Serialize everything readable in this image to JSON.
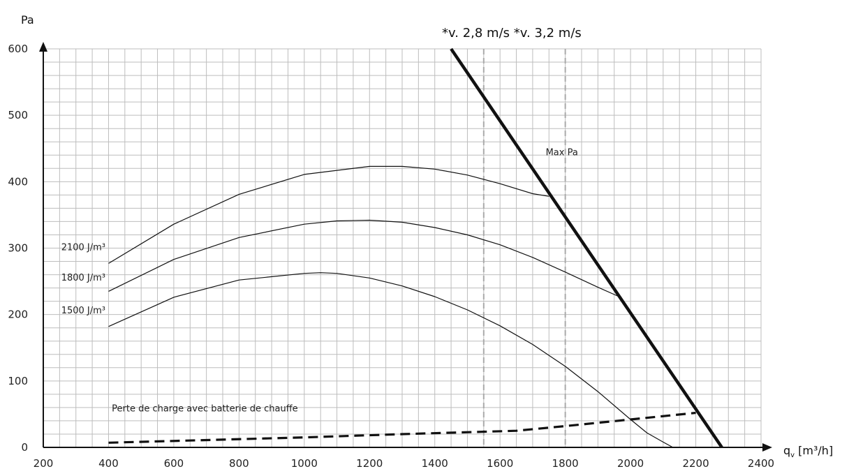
{
  "chart_data": {
    "type": "line",
    "ylabel": "Pa",
    "xlabel": "q",
    "xlabel_sub": "v",
    "xlabel_unit": " [m³/h]",
    "xlim": [
      200,
      2400
    ],
    "ylim": [
      0,
      600
    ],
    "x_ticks": [
      200,
      400,
      600,
      800,
      1000,
      1200,
      1400,
      1600,
      1800,
      2000,
      2200,
      2400
    ],
    "y_ticks": [
      0,
      100,
      200,
      300,
      400,
      500,
      600
    ],
    "grid": true,
    "series": [
      {
        "name": "2100 J/m³",
        "style": "thin",
        "x": [
          400,
          600,
          800,
          1000,
          1200,
          1300,
          1400,
          1500,
          1600,
          1700,
          1750
        ],
        "y": [
          277,
          336,
          381,
          411,
          423,
          423,
          419,
          410,
          397,
          382,
          378
        ]
      },
      {
        "name": "1800 J/m³",
        "style": "thin",
        "x": [
          400,
          600,
          800,
          1000,
          1100,
          1200,
          1300,
          1400,
          1500,
          1600,
          1700,
          1800,
          1900,
          1960
        ],
        "y": [
          235,
          283,
          316,
          336,
          341,
          342,
          339,
          331,
          320,
          305,
          286,
          264,
          241,
          228
        ]
      },
      {
        "name": "1500 J/m³",
        "style": "thin",
        "x": [
          400,
          600,
          800,
          1000,
          1050,
          1100,
          1200,
          1300,
          1400,
          1500,
          1600,
          1700,
          1800,
          1900,
          2000,
          2050,
          2100,
          2130
        ],
        "y": [
          182,
          226,
          252,
          262,
          263,
          262,
          255,
          243,
          227,
          207,
          183,
          155,
          122,
          84,
          42,
          22,
          8,
          0
        ]
      },
      {
        "name": "Max Pa",
        "style": "bold",
        "x": [
          1450,
          2280
        ],
        "y": [
          600,
          0
        ]
      },
      {
        "name": "Perte de charge avec batterie de  chauffe",
        "style": "dashed",
        "x": [
          400,
          1000,
          1300,
          1650,
          1800,
          2000,
          2200
        ],
        "y": [
          7,
          15,
          20,
          25,
          32,
          42,
          52
        ]
      }
    ],
    "vlines": [
      {
        "x": 1550,
        "label": "v. 2,8 m/s"
      },
      {
        "x": 1800,
        "label": "v. 3,2 m/s"
      }
    ],
    "annotations": [
      {
        "text": "2100 J/m³",
        "x": 255,
        "y": 297
      },
      {
        "text": "1800 J/m³",
        "x": 255,
        "y": 251
      },
      {
        "text": "1500 J/m³",
        "x": 255,
        "y": 202
      },
      {
        "text": "Max Pa",
        "x": 1740,
        "y": 440
      },
      {
        "text": "Perte de charge avec batterie de  chauffe",
        "x": 410,
        "y": 54
      }
    ],
    "velocity_header": "*v. 2,8 m/s *v. 3,2 m/s",
    "colors": {
      "curve": "#111111",
      "grid": "#bdbdbd",
      "vline": "#aaaaaa",
      "axis": "#111111"
    }
  }
}
